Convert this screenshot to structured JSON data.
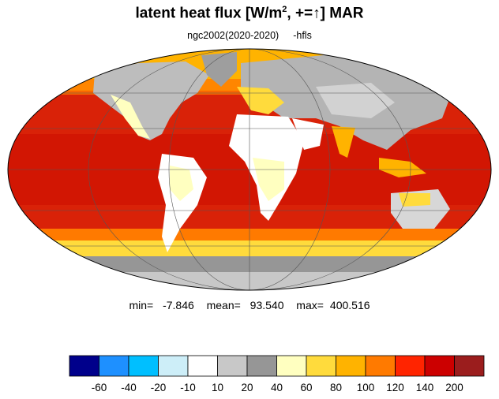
{
  "title": {
    "prefix": "latent heat flux [W/m",
    "superscript": "2",
    "mid": ", +=",
    "arrow": "↑",
    "suffix": "]  MAR"
  },
  "subtitle": {
    "run": "ngc2002(2020-2020)",
    "variable": "-hfls"
  },
  "stats": {
    "min_label": "min=",
    "min_value": "-7.846",
    "mean_label": "mean=",
    "mean_value": "93.540",
    "max_label": "max=",
    "max_value": "400.516"
  },
  "colorbar": {
    "colors": [
      "#00008b",
      "#1e90ff",
      "#00bfff",
      "#cdeef8",
      "#ffffff",
      "#c8c8c8",
      "#969696",
      "#ffffc0",
      "#ffdb3c",
      "#ffb300",
      "#ff7a00",
      "#ff2400",
      "#cc0000",
      "#9b1d1d"
    ],
    "labels": [
      "-60",
      "-40",
      "-20",
      "-10",
      "10",
      "20",
      "40",
      "60",
      "80",
      "100",
      "120",
      "140",
      "200"
    ]
  },
  "map": {
    "projection": "mollweide",
    "ocean_color": "#e02a0a",
    "land_color": "#ffffff",
    "outline_color": "#000000"
  }
}
